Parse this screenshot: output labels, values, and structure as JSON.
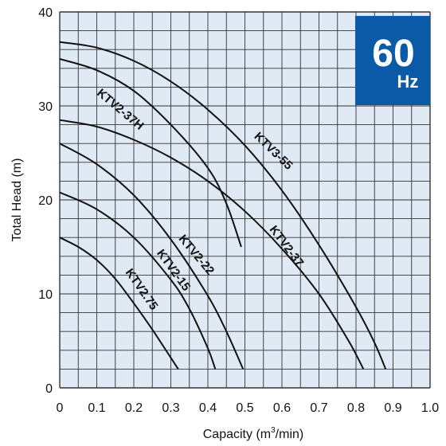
{
  "chart_data": {
    "type": "line",
    "xlabel": "Capacity (m",
    "xlabel_sup": "3",
    "xlabel_tail": "/min)",
    "ylabel": "Total Head (m)",
    "xlim": [
      0,
      1.0
    ],
    "ylim": [
      0,
      40
    ],
    "x_ticks": [
      "0",
      "0.1",
      "0.2",
      "0.3",
      "0.4",
      "0.5",
      "0.6",
      "0.7",
      "0.8",
      "0.9",
      "1.0"
    ],
    "y_ticks": [
      "0",
      "10",
      "20",
      "30",
      "40"
    ],
    "grid": true,
    "badge": {
      "big": "60",
      "small": "Hz"
    },
    "series": [
      {
        "name": "KTV3-55",
        "points": [
          [
            0,
            36.8
          ],
          [
            0.1,
            36.2
          ],
          [
            0.2,
            34.8
          ],
          [
            0.3,
            32.6
          ],
          [
            0.4,
            29.6
          ],
          [
            0.5,
            25.8
          ],
          [
            0.6,
            21.0
          ],
          [
            0.7,
            15.2
          ],
          [
            0.8,
            8.6
          ],
          [
            0.85,
            4.8
          ],
          [
            0.88,
            2.0
          ]
        ]
      },
      {
        "name": "KTV2-37H",
        "points": [
          [
            0,
            35.0
          ],
          [
            0.1,
            33.8
          ],
          [
            0.2,
            31.6
          ],
          [
            0.3,
            28.0
          ],
          [
            0.4,
            23.4
          ],
          [
            0.45,
            19.6
          ],
          [
            0.49,
            15.0
          ]
        ]
      },
      {
        "name": "KTV2-37",
        "points": [
          [
            0,
            28.5
          ],
          [
            0.1,
            27.8
          ],
          [
            0.2,
            26.4
          ],
          [
            0.3,
            24.5
          ],
          [
            0.4,
            22.0
          ],
          [
            0.5,
            18.8
          ],
          [
            0.6,
            14.8
          ],
          [
            0.7,
            10.0
          ],
          [
            0.78,
            5.0
          ],
          [
            0.82,
            2.0
          ]
        ]
      },
      {
        "name": "KTV2-22",
        "points": [
          [
            0,
            26.0
          ],
          [
            0.1,
            23.8
          ],
          [
            0.2,
            20.5
          ],
          [
            0.3,
            15.8
          ],
          [
            0.4,
            9.8
          ],
          [
            0.45,
            6.0
          ],
          [
            0.495,
            2.0
          ]
        ]
      },
      {
        "name": "KTV2-15",
        "points": [
          [
            0,
            20.8
          ],
          [
            0.1,
            19.0
          ],
          [
            0.2,
            16.0
          ],
          [
            0.3,
            11.5
          ],
          [
            0.35,
            8.4
          ],
          [
            0.4,
            4.2
          ],
          [
            0.42,
            2.0
          ]
        ]
      },
      {
        "name": "KTV2.75",
        "points": [
          [
            0,
            16.0
          ],
          [
            0.05,
            15.0
          ],
          [
            0.1,
            13.6
          ],
          [
            0.15,
            11.6
          ],
          [
            0.2,
            9.0
          ],
          [
            0.25,
            6.2
          ],
          [
            0.3,
            3.2
          ],
          [
            0.32,
            2.0
          ]
        ]
      }
    ]
  }
}
